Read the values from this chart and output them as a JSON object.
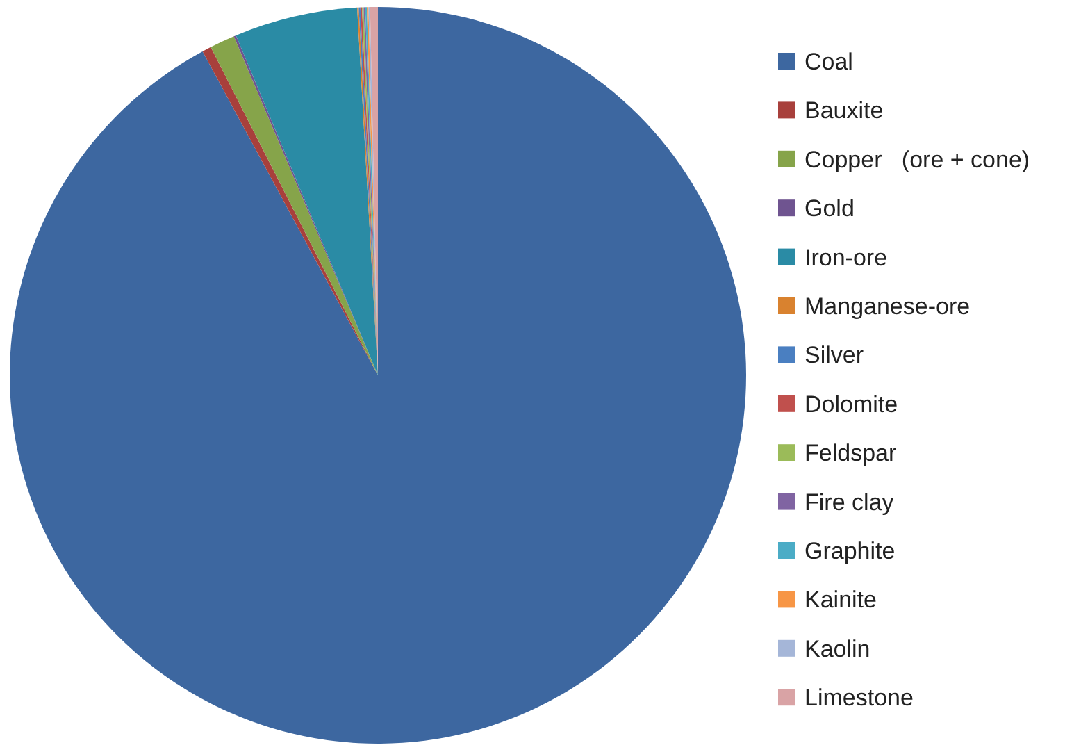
{
  "chart_data": {
    "type": "pie",
    "categories": [
      "Coal",
      "Bauxite",
      "Copper   (ore + cone)",
      "Gold",
      "Iron-ore",
      "Manganese-ore",
      "Silver",
      "Dolomite",
      "Feldspar",
      "Fire clay",
      "Graphite",
      "Kainite",
      "Kaolin",
      "Limestone"
    ],
    "values": [
      92.1,
      0.4,
      1.1,
      0.1,
      5.4,
      0.07,
      0.07,
      0.07,
      0.07,
      0.07,
      0.07,
      0.07,
      0.07,
      0.34
    ],
    "colors": [
      "#3d67a0",
      "#a8403c",
      "#86a44a",
      "#6f5490",
      "#2a8ba5",
      "#d9822f",
      "#4a7fc1",
      "#c0504d",
      "#9bbb59",
      "#8064a2",
      "#4bacc6",
      "#f79646",
      "#a5b6d8",
      "#d9a3a5"
    ],
    "legend": "right"
  }
}
